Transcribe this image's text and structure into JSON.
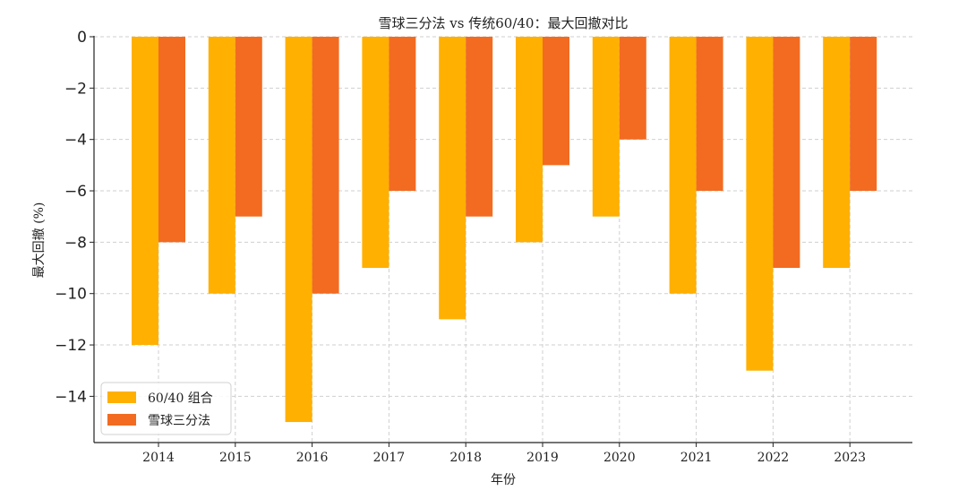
{
  "chart_data": {
    "type": "bar",
    "title": "雪球三分法 vs 传统60/40：最大回撤对比",
    "xlabel": "年份",
    "ylabel": "最大回撤 (%)",
    "categories": [
      "2014",
      "2015",
      "2016",
      "2017",
      "2018",
      "2019",
      "2020",
      "2021",
      "2022",
      "2023"
    ],
    "series": [
      {
        "name": "60/40 组合",
        "color": "#FFB000",
        "values": [
          -12,
          -10,
          -15,
          -9,
          -11,
          -8,
          -7,
          -10,
          -13,
          -9
        ]
      },
      {
        "name": "雪球三分法",
        "color": "#F26B21",
        "values": [
          -8,
          -7,
          -10,
          -6,
          -7,
          -5,
          -4,
          -6,
          -9,
          -6
        ]
      }
    ],
    "ylim": [
      -15.8,
      0
    ],
    "yticks": [
      0,
      -2,
      -4,
      -6,
      -8,
      -10,
      -12,
      -14
    ],
    "ytick_labels": [
      "0",
      "−2",
      "−4",
      "−6",
      "−8",
      "−10",
      "−12",
      "−14"
    ],
    "grid": true,
    "legend_position": "bottom-left"
  }
}
